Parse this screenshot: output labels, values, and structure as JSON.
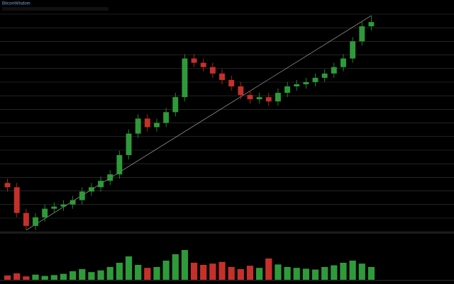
{
  "chart_data": {
    "type": "candlestick",
    "title": "BitcoinWisdom",
    "open": [
      22,
      20,
      8,
      2,
      6,
      10,
      11,
      12,
      14,
      18,
      20,
      23,
      26,
      35,
      45,
      52,
      48,
      50,
      55,
      62,
      80,
      78,
      76,
      73,
      70,
      67,
      63,
      61,
      62,
      60,
      64,
      67,
      68,
      69,
      71,
      73,
      76,
      80,
      88,
      95
    ],
    "high": [
      24,
      22,
      10,
      8,
      12,
      13,
      14,
      16,
      20,
      22,
      25,
      28,
      37,
      47,
      54,
      54,
      52,
      57,
      64,
      82,
      82,
      80,
      78,
      75,
      72,
      69,
      65,
      64,
      64,
      66,
      69,
      70,
      71,
      73,
      75,
      78,
      82,
      90,
      97,
      100
    ],
    "low": [
      18,
      6,
      0,
      0,
      4,
      8,
      9,
      10,
      12,
      16,
      18,
      21,
      24,
      33,
      43,
      46,
      46,
      48,
      53,
      60,
      76,
      74,
      71,
      68,
      65,
      61,
      59,
      59,
      58,
      58,
      62,
      65,
      66,
      67,
      69,
      71,
      74,
      78,
      86,
      93
    ],
    "close": [
      20,
      8,
      2,
      6,
      10,
      11,
      12,
      14,
      18,
      20,
      23,
      26,
      35,
      45,
      52,
      48,
      50,
      55,
      62,
      80,
      78,
      76,
      73,
      70,
      67,
      63,
      61,
      62,
      60,
      64,
      67,
      68,
      69,
      71,
      73,
      76,
      80,
      88,
      95,
      97
    ],
    "volume": [
      10,
      15,
      8,
      12,
      9,
      11,
      14,
      20,
      25,
      18,
      22,
      30,
      40,
      55,
      35,
      28,
      30,
      45,
      60,
      70,
      40,
      35,
      38,
      42,
      30,
      25,
      33,
      28,
      50,
      36,
      30,
      28,
      26,
      24,
      30,
      34,
      40,
      45,
      38,
      30
    ],
    "ylim": [
      0,
      100
    ],
    "volume_lim": [
      0,
      100
    ],
    "up_color": "#2f9a3a",
    "down_color": "#c6302b",
    "grid": true
  }
}
